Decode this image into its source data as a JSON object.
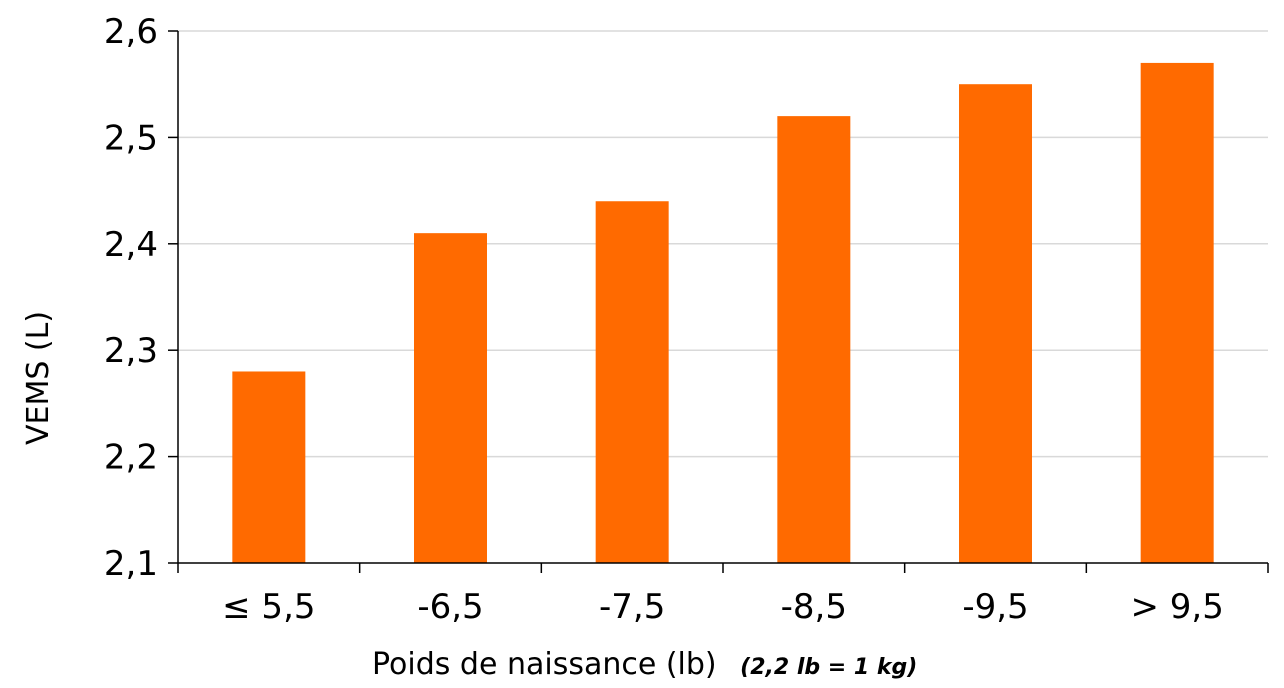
{
  "chart_data": {
    "type": "bar",
    "categories": [
      "≤ 5,5",
      "-6,5",
      "-7,5",
      "-8,5",
      "-9,5",
      "> 9,5"
    ],
    "values": [
      2.28,
      2.41,
      2.44,
      2.52,
      2.55,
      2.57
    ],
    "ylabel": "VEMS (L)",
    "xlabel": "Poids de naissance (lb)",
    "xlabel_note": "(2,2 lb = 1 kg)",
    "ylim": [
      2.1,
      2.6
    ],
    "yticks": [
      "2,1",
      "2,2",
      "2,3",
      "2,4",
      "2,5",
      "2,6"
    ],
    "ytick_values": [
      2.1,
      2.2,
      2.3,
      2.4,
      2.5,
      2.6
    ],
    "grid": true,
    "bar_color": "#ff6a00",
    "grid_color": "#d9d9d9",
    "axis_color": "#000000"
  }
}
